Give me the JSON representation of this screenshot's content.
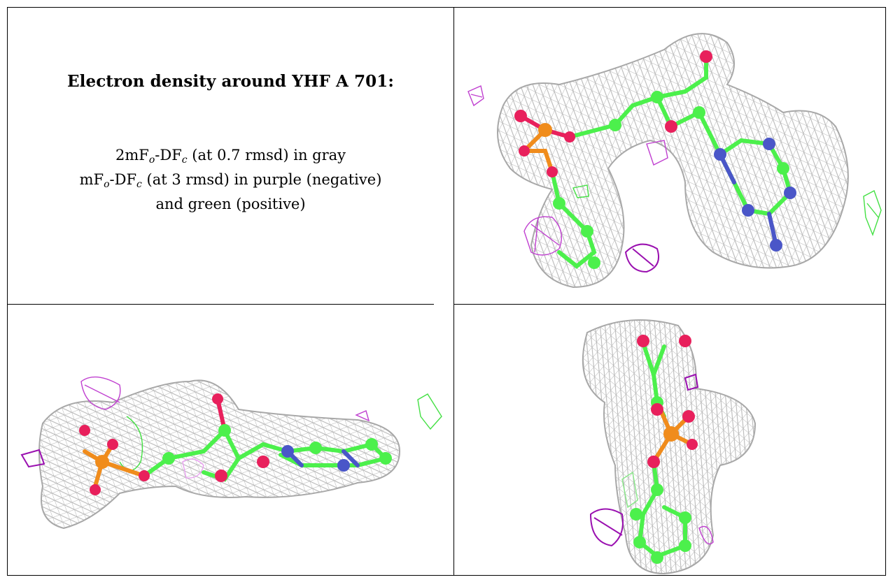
{
  "caption": {
    "title": "Electron density around YHF A 701:",
    "line1": {
      "a": "2mF",
      "sub1": "o",
      "b": "-DF",
      "sub2": "c",
      "c": " (at 0.7 rmsd) in gray"
    },
    "line2": {
      "a": "mF",
      "sub1": "o",
      "b": "-DF",
      "sub2": "c",
      "c": " (at 3 rmsd) in purple (negative)"
    },
    "line3": "and green (positive)"
  },
  "panels": [
    {
      "name": "view-top-right"
    },
    {
      "name": "view-bottom-left"
    },
    {
      "name": "view-bottom-right"
    }
  ],
  "colors": {
    "mesh_gray": "#b4b4b4",
    "mesh_purple": "#c040d0",
    "mesh_green": "#44e044",
    "carbon": "#4cf04c",
    "oxygen": "#e8205c",
    "nitrogen": "#4a56c8",
    "phosphorus": "#f08c1c"
  }
}
